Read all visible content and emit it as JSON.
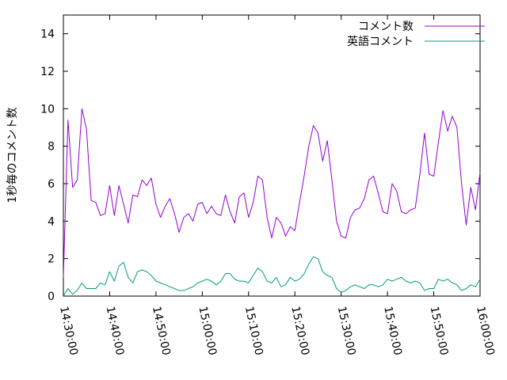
{
  "chart_data": {
    "type": "line",
    "title": "",
    "xlabel": "",
    "ylabel": "1秒毎のコメント数",
    "xlim": [
      "14:30:00",
      "16:00:00"
    ],
    "ylim": [
      0,
      15
    ],
    "yticks": [
      0,
      2,
      4,
      6,
      8,
      10,
      12,
      14
    ],
    "xticks": [
      "14:30:00",
      "14:40:00",
      "14:50:00",
      "15:00:00",
      "15:10:00",
      "15:20:00",
      "15:30:00",
      "15:40:00",
      "15:50:00",
      "16:00:00"
    ],
    "grid": false,
    "legend_position": "top-right",
    "x": [
      "14:30:00",
      "14:31:00",
      "14:32:00",
      "14:33:00",
      "14:34:00",
      "14:35:00",
      "14:36:00",
      "14:37:00",
      "14:38:00",
      "14:39:00",
      "14:40:00",
      "14:41:00",
      "14:42:00",
      "14:43:00",
      "14:44:00",
      "14:45:00",
      "14:46:00",
      "14:47:00",
      "14:48:00",
      "14:49:00",
      "14:50:00",
      "14:51:00",
      "14:52:00",
      "14:53:00",
      "14:54:00",
      "14:55:00",
      "14:56:00",
      "14:57:00",
      "14:58:00",
      "14:59:00",
      "15:00:00",
      "15:01:00",
      "15:02:00",
      "15:03:00",
      "15:04:00",
      "15:05:00",
      "15:06:00",
      "15:07:00",
      "15:08:00",
      "15:09:00",
      "15:10:00",
      "15:11:00",
      "15:12:00",
      "15:13:00",
      "15:14:00",
      "15:15:00",
      "15:16:00",
      "15:17:00",
      "15:18:00",
      "15:19:00",
      "15:20:00",
      "15:21:00",
      "15:22:00",
      "15:23:00",
      "15:24:00",
      "15:25:00",
      "15:26:00",
      "15:27:00",
      "15:28:00",
      "15:29:00",
      "15:30:00",
      "15:31:00",
      "15:32:00",
      "15:33:00",
      "15:34:00",
      "15:35:00",
      "15:36:00",
      "15:37:00",
      "15:38:00",
      "15:39:00",
      "15:40:00",
      "15:41:00",
      "15:42:00",
      "15:43:00",
      "15:44:00",
      "15:45:00",
      "15:46:00",
      "15:47:00",
      "15:48:00",
      "15:49:00",
      "15:50:00",
      "15:51:00",
      "15:52:00",
      "15:53:00",
      "15:54:00",
      "15:55:00",
      "15:56:00",
      "15:57:00",
      "15:58:00",
      "15:59:00",
      "16:00:00"
    ],
    "series": [
      {
        "name": "コメント数",
        "color": "#9400d3",
        "values": [
          1.0,
          9.4,
          5.8,
          6.2,
          10.0,
          8.9,
          5.1,
          5.0,
          4.3,
          4.4,
          5.9,
          4.3,
          5.9,
          4.9,
          3.9,
          5.4,
          5.3,
          6.2,
          5.9,
          6.3,
          4.9,
          4.2,
          4.8,
          5.2,
          4.4,
          3.4,
          4.2,
          4.4,
          4.0,
          4.9,
          5.0,
          4.4,
          4.8,
          4.4,
          4.3,
          5.4,
          4.5,
          3.9,
          5.3,
          5.5,
          4.2,
          5.0,
          6.4,
          6.2,
          4.2,
          3.1,
          4.2,
          3.9,
          3.2,
          3.7,
          3.5,
          5.0,
          6.4,
          8.0,
          9.1,
          8.7,
          7.2,
          8.3,
          6.2,
          4.0,
          3.2,
          3.1,
          4.2,
          4.6,
          4.7,
          5.2,
          6.2,
          6.4,
          5.5,
          4.5,
          4.4,
          6.0,
          5.6,
          4.5,
          4.4,
          4.6,
          4.7,
          6.5,
          8.7,
          6.5,
          6.4,
          8.2,
          9.9,
          8.8,
          9.6,
          9.0,
          6.0,
          3.8,
          5.8,
          4.6,
          6.6
        ]
      },
      {
        "name": "英語コメント",
        "color": "#009e73",
        "values": [
          0.0,
          0.4,
          0.1,
          0.3,
          0.7,
          0.4,
          0.4,
          0.4,
          0.7,
          0.6,
          1.3,
          0.8,
          1.6,
          1.8,
          1.0,
          0.7,
          1.3,
          1.4,
          1.3,
          1.1,
          0.8,
          0.7,
          0.6,
          0.5,
          0.4,
          0.3,
          0.3,
          0.4,
          0.5,
          0.7,
          0.8,
          0.9,
          0.8,
          0.6,
          0.8,
          1.2,
          1.2,
          0.9,
          0.8,
          0.8,
          0.7,
          1.1,
          1.5,
          1.3,
          0.8,
          0.7,
          1.0,
          0.5,
          0.6,
          1.0,
          0.8,
          0.9,
          1.2,
          1.7,
          2.1,
          2.0,
          1.3,
          1.1,
          1.0,
          0.4,
          0.2,
          0.3,
          0.5,
          0.6,
          0.5,
          0.4,
          0.6,
          0.6,
          0.5,
          0.6,
          0.9,
          0.8,
          0.9,
          1.0,
          0.8,
          0.7,
          0.8,
          0.7,
          0.3,
          0.4,
          0.4,
          0.9,
          0.8,
          0.9,
          0.7,
          0.6,
          0.3,
          0.4,
          0.6,
          0.5,
          0.9
        ]
      }
    ]
  }
}
